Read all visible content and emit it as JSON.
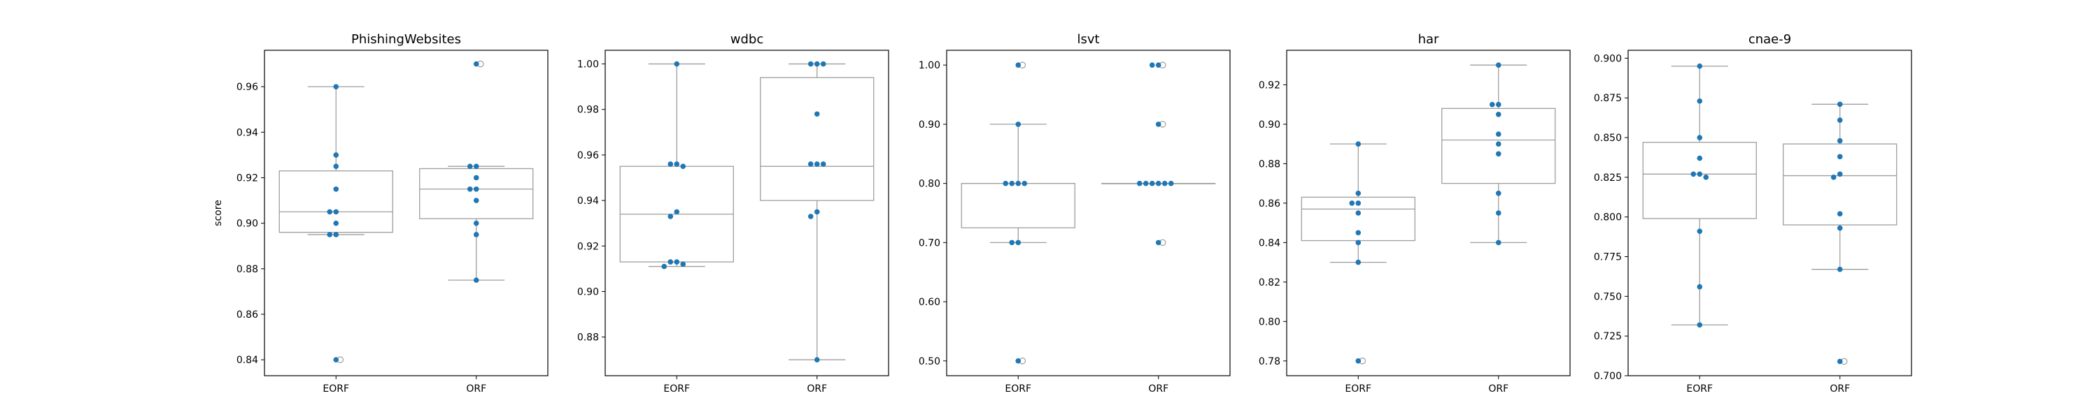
{
  "figure": {
    "background": "#ffffff",
    "box_edge_color": "#9e9e9e",
    "outlier_edge_color": "#9e9e9e",
    "point_color": "#1f77b4",
    "ylabel": "score"
  },
  "chart_data": [
    {
      "type": "box",
      "title": "PhishingWebsites",
      "xlabel": "",
      "ylabel": "score",
      "categories": [
        "EORF",
        "ORF"
      ],
      "ylim": [
        0.833,
        0.976
      ],
      "yticks": [
        0.84,
        0.86,
        0.88,
        0.9,
        0.92,
        0.94,
        0.96
      ],
      "boxes": [
        {
          "name": "EORF",
          "whisker_low": 0.895,
          "q1": 0.896,
          "median": 0.905,
          "q3": 0.923,
          "whisker_high": 0.96,
          "outliers": [
            0.84
          ]
        },
        {
          "name": "ORF",
          "whisker_low": 0.875,
          "q1": 0.902,
          "median": 0.915,
          "q3": 0.924,
          "whisker_high": 0.925,
          "outliers": [
            0.97
          ]
        }
      ],
      "points": [
        {
          "category": "EORF",
          "values": [
            0.96,
            0.93,
            0.925,
            0.915,
            0.905,
            0.905,
            0.9,
            0.895,
            0.895,
            0.84
          ]
        },
        {
          "category": "ORF",
          "values": [
            0.97,
            0.925,
            0.925,
            0.92,
            0.915,
            0.915,
            0.91,
            0.9,
            0.895,
            0.875
          ]
        }
      ]
    },
    {
      "type": "box",
      "title": "wdbc",
      "xlabel": "",
      "ylabel": "",
      "categories": [
        "EORF",
        "ORF"
      ],
      "ylim": [
        0.863,
        1.006
      ],
      "yticks": [
        0.88,
        0.9,
        0.92,
        0.94,
        0.96,
        0.98,
        1.0
      ],
      "boxes": [
        {
          "name": "EORF",
          "whisker_low": 0.911,
          "q1": 0.913,
          "median": 0.934,
          "q3": 0.955,
          "whisker_high": 1.0,
          "outliers": []
        },
        {
          "name": "ORF",
          "whisker_low": 0.87,
          "q1": 0.94,
          "median": 0.955,
          "q3": 0.994,
          "whisker_high": 1.0,
          "outliers": []
        }
      ],
      "points": [
        {
          "category": "EORF",
          "values": [
            1.0,
            0.956,
            0.956,
            0.955,
            0.935,
            0.933,
            0.913,
            0.913,
            0.912,
            0.911
          ]
        },
        {
          "category": "ORF",
          "values": [
            1.0,
            1.0,
            1.0,
            0.978,
            0.956,
            0.956,
            0.956,
            0.935,
            0.933,
            0.87
          ]
        }
      ]
    },
    {
      "type": "box",
      "title": "lsvt",
      "xlabel": "",
      "ylabel": "",
      "categories": [
        "EORF",
        "ORF"
      ],
      "ylim": [
        0.475,
        1.025
      ],
      "yticks": [
        0.5,
        0.6,
        0.7,
        0.8,
        0.9,
        1.0
      ],
      "boxes": [
        {
          "name": "EORF",
          "whisker_low": 0.7,
          "q1": 0.725,
          "median": 0.8,
          "q3": 0.8,
          "whisker_high": 0.9,
          "outliers": [
            1.0,
            0.5
          ]
        },
        {
          "name": "ORF",
          "whisker_low": 0.8,
          "q1": 0.8,
          "median": 0.8,
          "q3": 0.8,
          "whisker_high": 0.8,
          "outliers": [
            1.0,
            0.9,
            0.7
          ]
        }
      ],
      "points": [
        {
          "category": "EORF",
          "values": [
            1.0,
            0.9,
            0.8,
            0.8,
            0.8,
            0.8,
            0.7,
            0.7,
            0.5
          ]
        },
        {
          "category": "ORF",
          "values": [
            1.0,
            1.0,
            0.9,
            0.8,
            0.8,
            0.8,
            0.8,
            0.8,
            0.8,
            0.7
          ]
        }
      ]
    },
    {
      "type": "box",
      "title": "har",
      "xlabel": "",
      "ylabel": "",
      "categories": [
        "EORF",
        "ORF"
      ],
      "ylim": [
        0.7725,
        0.9375
      ],
      "yticks": [
        0.78,
        0.8,
        0.82,
        0.84,
        0.86,
        0.88,
        0.9,
        0.92
      ],
      "boxes": [
        {
          "name": "EORF",
          "whisker_low": 0.83,
          "q1": 0.841,
          "median": 0.857,
          "q3": 0.863,
          "whisker_high": 0.89,
          "outliers": [
            0.78
          ]
        },
        {
          "name": "ORF",
          "whisker_low": 0.84,
          "q1": 0.87,
          "median": 0.892,
          "q3": 0.908,
          "whisker_high": 0.93,
          "outliers": []
        }
      ],
      "points": [
        {
          "category": "EORF",
          "values": [
            0.89,
            0.865,
            0.86,
            0.86,
            0.855,
            0.845,
            0.84,
            0.83,
            0.78
          ]
        },
        {
          "category": "ORF",
          "values": [
            0.93,
            0.91,
            0.91,
            0.905,
            0.895,
            0.89,
            0.885,
            0.865,
            0.855,
            0.84
          ]
        }
      ]
    },
    {
      "type": "box",
      "title": "cnae-9",
      "xlabel": "",
      "ylabel": "",
      "categories": [
        "EORF",
        "ORF"
      ],
      "ylim": [
        0.7,
        0.905
      ],
      "yticks": [
        0.7,
        0.725,
        0.75,
        0.775,
        0.8,
        0.825,
        0.85,
        0.875,
        0.9
      ],
      "boxes": [
        {
          "name": "EORF",
          "whisker_low": 0.732,
          "q1": 0.799,
          "median": 0.827,
          "q3": 0.847,
          "whisker_high": 0.895,
          "outliers": []
        },
        {
          "name": "ORF",
          "whisker_low": 0.767,
          "q1": 0.795,
          "median": 0.826,
          "q3": 0.846,
          "whisker_high": 0.871,
          "outliers": [
            0.709
          ]
        }
      ],
      "points": [
        {
          "category": "EORF",
          "values": [
            0.895,
            0.873,
            0.85,
            0.837,
            0.827,
            0.827,
            0.825,
            0.791,
            0.756,
            0.732
          ]
        },
        {
          "category": "ORF",
          "values": [
            0.871,
            0.861,
            0.848,
            0.838,
            0.827,
            0.825,
            0.802,
            0.793,
            0.767,
            0.709
          ]
        }
      ]
    }
  ]
}
